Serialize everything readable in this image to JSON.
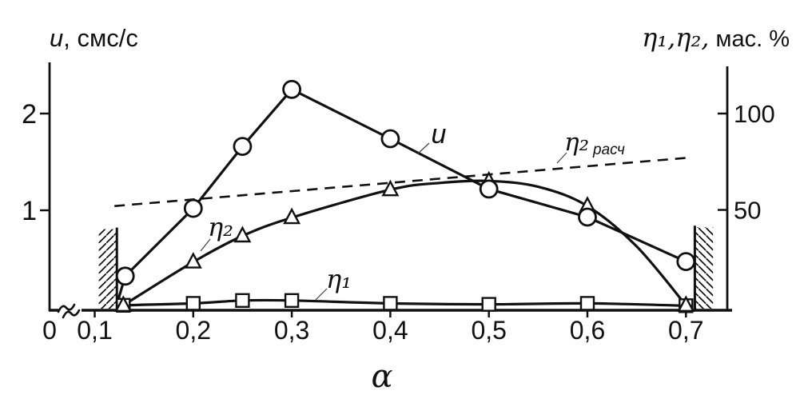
{
  "chart_data": {
    "type": "line",
    "x_axis": {
      "label": "α",
      "tick_labels": [
        "0",
        "0,1",
        "0,2",
        "0,3",
        "0,4",
        "0,5",
        "0,6",
        "0,7"
      ],
      "tick_values": [
        0,
        0.1,
        0.2,
        0.3,
        0.4,
        0.5,
        0.6,
        0.7
      ],
      "axis_break_between": [
        0,
        0.1
      ],
      "plotted_range": [
        0.1,
        0.73
      ]
    },
    "y_left": {
      "label_var": "u",
      "label_rest": ", смс/с",
      "tick_labels": [
        "1",
        "2"
      ],
      "tick_values": [
        1,
        2
      ],
      "range": [
        0,
        2.5
      ]
    },
    "y_right": {
      "label_var": "η₁,η₂,",
      "label_rest": " мас. %",
      "tick_labels": [
        "50",
        "100"
      ],
      "tick_values": [
        50,
        100
      ],
      "range": [
        0,
        125
      ]
    },
    "series": [
      {
        "name": "eta2_calc",
        "label": "η₂ расч",
        "axis": "right",
        "marker": "none",
        "line": "dashed",
        "smooth": false,
        "points": [
          [
            0.12,
            52
          ],
          [
            0.701,
            77
          ]
        ],
        "marker_points": []
      },
      {
        "name": "eta1",
        "label": "η₁",
        "axis": "right",
        "marker": "square",
        "line": "solid",
        "smooth": true,
        "points": [
          [
            0.129,
            0.5
          ],
          [
            0.2,
            1.5
          ],
          [
            0.25,
            3
          ],
          [
            0.3,
            3
          ],
          [
            0.4,
            1.5
          ],
          [
            0.5,
            1
          ],
          [
            0.6,
            1.5
          ],
          [
            0.7,
            0.3
          ]
        ],
        "marker_points": [
          [
            0.129,
            0.5
          ],
          [
            0.2,
            1.5
          ],
          [
            0.25,
            3
          ],
          [
            0.3,
            3
          ],
          [
            0.4,
            1.5
          ],
          [
            0.5,
            1
          ],
          [
            0.6,
            1.5
          ],
          [
            0.7,
            0.3
          ]
        ]
      },
      {
        "name": "eta2",
        "label": "η₂",
        "axis": "right",
        "marker": "triangle",
        "line": "solid",
        "smooth": true,
        "points": [
          [
            0.129,
            0.5
          ],
          [
            0.2,
            23
          ],
          [
            0.25,
            36.5
          ],
          [
            0.3,
            46
          ],
          [
            0.4,
            60.5
          ],
          [
            0.45,
            64
          ],
          [
            0.5,
            65
          ],
          [
            0.55,
            62
          ],
          [
            0.6,
            52
          ],
          [
            0.65,
            31
          ],
          [
            0.7,
            0.5
          ]
        ],
        "marker_points": [
          [
            0.129,
            0.5
          ],
          [
            0.2,
            23
          ],
          [
            0.25,
            36.5
          ],
          [
            0.3,
            46
          ],
          [
            0.4,
            60.5
          ],
          [
            0.5,
            65
          ],
          [
            0.6,
            52
          ],
          [
            0.7,
            0.5
          ]
        ]
      },
      {
        "name": "u",
        "label": "u",
        "axis": "left",
        "marker": "circle",
        "line": "solid",
        "smooth": false,
        "points": [
          [
            0.124,
            0.08
          ],
          [
            0.131,
            0.32
          ],
          [
            0.2,
            1.02
          ],
          [
            0.25,
            1.66
          ],
          [
            0.3,
            2.25
          ],
          [
            0.4,
            1.74
          ],
          [
            0.5,
            1.22
          ],
          [
            0.6,
            0.93
          ],
          [
            0.7,
            0.47
          ]
        ],
        "marker_points": [
          [
            0.131,
            0.32
          ],
          [
            0.2,
            1.02
          ],
          [
            0.25,
            1.66
          ],
          [
            0.3,
            2.25
          ],
          [
            0.4,
            1.74
          ],
          [
            0.5,
            1.22
          ],
          [
            0.6,
            0.93
          ],
          [
            0.7,
            0.47
          ]
        ]
      }
    ],
    "boundary_bars": [
      {
        "alpha_start": 0.104,
        "alpha_end": 0.1225,
        "height_pct": 40,
        "solid_edge": "right",
        "hatch": "/"
      },
      {
        "alpha_start": 0.709,
        "alpha_end": 0.7275,
        "height_pct": 41,
        "solid_edge": "left",
        "hatch": "\\"
      }
    ]
  },
  "labels": {
    "u_curve": "u",
    "eta2_curve": "η₂",
    "eta1_curve": "η₁",
    "eta2_calc_base": "η₂",
    "eta2_calc_sub": "расч"
  }
}
